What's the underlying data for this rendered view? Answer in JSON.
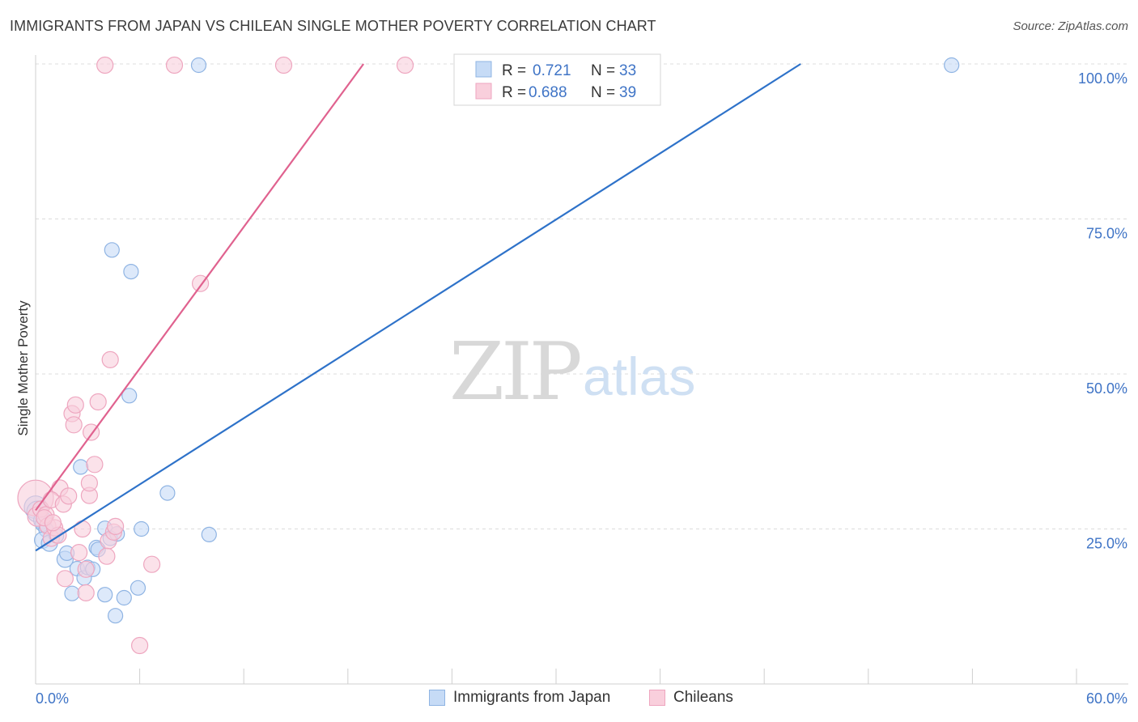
{
  "title": "IMMIGRANTS FROM JAPAN VS CHILEAN SINGLE MOTHER POVERTY CORRELATION CHART",
  "source": "Source: ZipAtlas.com",
  "watermark": {
    "zip": "ZIP",
    "atlas": "atlas"
  },
  "colors": {
    "blue_fill": "#c6dbf6",
    "blue_stroke": "#8fb4e3",
    "blue_line": "#2e72c9",
    "pink_fill": "#f9cfdc",
    "pink_stroke": "#eea6bf",
    "pink_line": "#e0628f",
    "axis_text": "#3f74c6",
    "grid": "#dcdcdc"
  },
  "legend": {
    "rows": [
      {
        "r_label": "R = ",
        "r_value": "0.721",
        "n_label": "N = ",
        "n_value": "33",
        "series": "japan"
      },
      {
        "r_label": "R = ",
        "r_value": "0.688",
        "n_label": "N = ",
        "n_value": "39",
        "series": "chileans"
      }
    ]
  },
  "legend_bottom": [
    {
      "label": "Immigrants from Japan",
      "series": "japan"
    },
    {
      "label": "Chileans",
      "series": "chileans"
    }
  ],
  "chart_data": {
    "type": "scatter",
    "title": "IMMIGRANTS FROM JAPAN VS CHILEAN SINGLE MOTHER POVERTY CORRELATION CHART",
    "xlabel": "",
    "ylabel": "Single Mother Poverty",
    "xlim": [
      0,
      60
    ],
    "ylim": [
      0,
      100
    ],
    "x_tick_labels": [
      "0.0%",
      "60.0%"
    ],
    "y_ticks": [
      25,
      50,
      75,
      100
    ],
    "y_tick_labels": [
      "25.0%",
      "50.0%",
      "75.0%",
      "100.0%"
    ],
    "grid": true,
    "legend_position": "top-center",
    "series": [
      {
        "name": "Immigrants from Japan",
        "id": "japan",
        "r": 0.721,
        "n": 33,
        "trend": {
          "x0": 0,
          "y0": 21.5,
          "x1": 44.1,
          "y1": 100
        },
        "points": [
          [
            0.0,
            28.5,
            14
          ],
          [
            0.1,
            27.8,
            13
          ],
          [
            0.4,
            26.4,
            11
          ],
          [
            0.4,
            25.8,
            9
          ],
          [
            0.6,
            24.9,
            9
          ],
          [
            0.4,
            23.2,
            10
          ],
          [
            0.8,
            22.7,
            10
          ],
          [
            1.2,
            23.9,
            9
          ],
          [
            1.7,
            20.1,
            10
          ],
          [
            1.8,
            21.1,
            9
          ],
          [
            2.1,
            14.6,
            9
          ],
          [
            2.4,
            18.6,
            9
          ],
          [
            2.8,
            17.1,
            9
          ],
          [
            3.0,
            18.8,
            9
          ],
          [
            3.3,
            18.5,
            9
          ],
          [
            2.6,
            35.0,
            9
          ],
          [
            3.5,
            22.0,
            9
          ],
          [
            3.6,
            21.7,
            9
          ],
          [
            4.0,
            14.4,
            9
          ],
          [
            4.0,
            25.1,
            9
          ],
          [
            4.3,
            23.5,
            9
          ],
          [
            4.6,
            11.0,
            9
          ],
          [
            4.7,
            24.2,
            9
          ],
          [
            5.1,
            13.9,
            9
          ],
          [
            5.9,
            15.5,
            9
          ],
          [
            6.1,
            25.0,
            9
          ],
          [
            5.4,
            46.5,
            9
          ],
          [
            5.5,
            66.5,
            9
          ],
          [
            4.4,
            70.0,
            9
          ],
          [
            7.6,
            30.8,
            9
          ],
          [
            10.0,
            24.1,
            9
          ],
          [
            9.4,
            99.8,
            9
          ],
          [
            52.8,
            99.8,
            9
          ]
        ]
      },
      {
        "name": "Chileans",
        "id": "chileans",
        "r": 0.688,
        "n": 39,
        "trend": {
          "x0": 0,
          "y0": 28.0,
          "x1": 18.9,
          "y1": 100
        },
        "points": [
          [
            0.0,
            30.0,
            22
          ],
          [
            0.1,
            27.0,
            12
          ],
          [
            0.3,
            28.2,
            10
          ],
          [
            0.6,
            27.3,
            10
          ],
          [
            0.7,
            25.5,
            10
          ],
          [
            0.9,
            23.5,
            10
          ],
          [
            1.1,
            25.2,
            10
          ],
          [
            1.3,
            24.0,
            10
          ],
          [
            1.4,
            31.6,
            10
          ],
          [
            0.9,
            29.7,
            10
          ],
          [
            1.6,
            29.0,
            10
          ],
          [
            1.9,
            30.3,
            10
          ],
          [
            1.7,
            17.0,
            10
          ],
          [
            2.1,
            43.6,
            10
          ],
          [
            2.2,
            41.8,
            10
          ],
          [
            2.3,
            45.0,
            10
          ],
          [
            2.5,
            21.2,
            10
          ],
          [
            2.7,
            25.0,
            10
          ],
          [
            2.9,
            18.5,
            10
          ],
          [
            3.1,
            30.4,
            10
          ],
          [
            3.2,
            40.6,
            10
          ],
          [
            3.4,
            35.4,
            10
          ],
          [
            3.6,
            45.5,
            10
          ],
          [
            3.1,
            32.4,
            10
          ],
          [
            2.9,
            14.7,
            10
          ],
          [
            4.2,
            23.1,
            10
          ],
          [
            4.1,
            20.6,
            10
          ],
          [
            4.5,
            24.5,
            10
          ],
          [
            4.6,
            25.4,
            10
          ],
          [
            4.3,
            52.3,
            10
          ],
          [
            6.0,
            6.2,
            10
          ],
          [
            6.7,
            19.3,
            10
          ],
          [
            9.5,
            64.6,
            10
          ],
          [
            4.0,
            99.8,
            10
          ],
          [
            8.0,
            99.8,
            10
          ],
          [
            14.3,
            99.8,
            10
          ],
          [
            21.3,
            99.8,
            10
          ],
          [
            0.5,
            26.8,
            10
          ],
          [
            1.0,
            26.0,
            10
          ]
        ]
      }
    ]
  }
}
